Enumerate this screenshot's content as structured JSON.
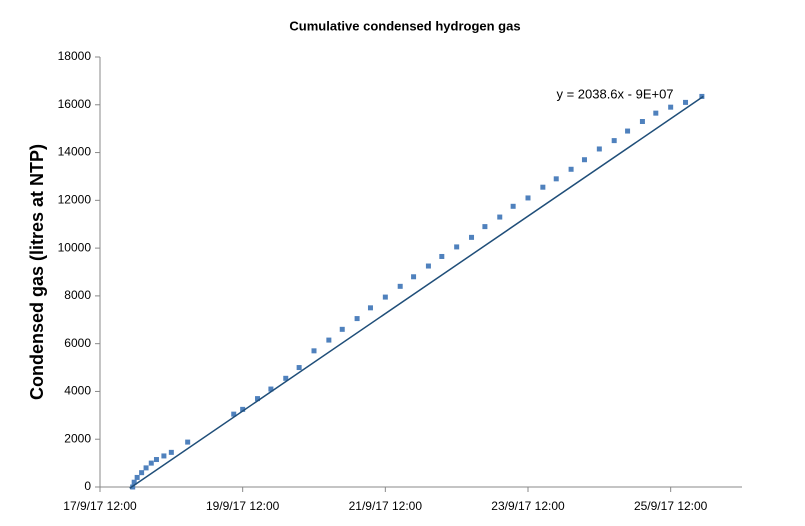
{
  "chart_data": {
    "type": "scatter",
    "title": "Cumulative condensed hydrogen gas",
    "y_label": "Condensed gas (litres at NTP)",
    "x": [
      "17/9/17 23:00",
      "17/9/17 23:30",
      "18/9/17 0:30",
      "18/9/17 2:00",
      "18/9/17 3:30",
      "18/9/17 5:15",
      "18/9/17 7:00",
      "18/9/17 9:30",
      "18/9/17 12:00",
      "18/9/17 17:30",
      "19/9/17 9:00",
      "19/9/17 12:00",
      "19/9/17 17:00",
      "19/9/17 21:30",
      "20/9/17 2:30",
      "20/9/17 7:00",
      "20/9/17 12:00",
      "20/9/17 17:00",
      "20/9/17 21:30",
      "21/9/17 2:30",
      "21/9/17 7:00",
      "21/9/17 12:00",
      "21/9/17 17:00",
      "21/9/17 21:30",
      "22/9/17 2:30",
      "22/9/17 7:00",
      "22/9/17 12:00",
      "22/9/17 17:00",
      "22/9/17 21:30",
      "23/9/17 2:30",
      "23/9/17 7:00",
      "23/9/17 12:00",
      "23/9/17 17:00",
      "23/9/17 21:30",
      "24/9/17 2:30",
      "24/9/17 7:00",
      "24/9/17 12:00",
      "24/9/17 17:00",
      "24/9/17 21:30",
      "25/9/17 2:30",
      "25/9/17 7:00",
      "25/9/17 12:00",
      "25/9/17 17:00",
      "25/9/17 22:30"
    ],
    "series": [
      {
        "color": "#4f81bd",
        "values": [
          0,
          200,
          400,
          600,
          800,
          1000,
          1150,
          1300,
          1450,
          1880,
          3050,
          3250,
          3700,
          4100,
          4550,
          5000,
          5700,
          6150,
          6600,
          7050,
          7500,
          7950,
          8400,
          8800,
          9250,
          9650,
          10050,
          10450,
          10900,
          11300,
          11750,
          12100,
          12550,
          12900,
          13300,
          13700,
          14150,
          14500,
          14900,
          15300,
          15650,
          15900,
          16100,
          16350
        ]
      }
    ],
    "trendline": {
      "label": "y = 2038.6x - 9E+07",
      "color": "#1f4e79",
      "x": [
        "17/9/17 22:00",
        "25/9/17 23:00"
      ],
      "values": [
        -50,
        16350
      ]
    },
    "xlim": [
      "17/9/17 12:00",
      "26/9/17 12:00"
    ],
    "xticks": [
      "17/9/17 12:00",
      "19/9/17 12:00",
      "21/9/17 12:00",
      "23/9/17 12:00",
      "25/9/17 12:00"
    ],
    "ylim": [
      0,
      18000
    ],
    "yticks": [
      0,
      2000,
      4000,
      6000,
      8000,
      10000,
      12000,
      14000,
      16000,
      18000
    ]
  }
}
